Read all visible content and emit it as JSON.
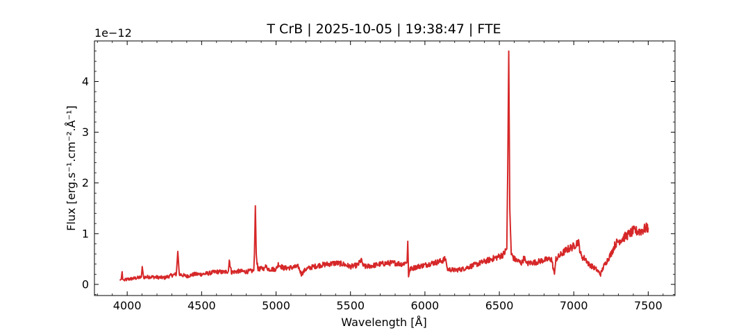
{
  "chart_data": {
    "type": "line",
    "title": "T CrB | 2025-10-05 | 19:38:47 | FTE",
    "xlabel": "Wavelength [Å]",
    "ylabel": "Flux [erg.s⁻¹.cm⁻².Å⁻¹]",
    "offset_text": "1e−12",
    "xlim": [
      3780,
      7680
    ],
    "ylim": [
      -0.22,
      4.8
    ],
    "x_ticks": [
      4000,
      4500,
      5000,
      5500,
      6000,
      6500,
      7000,
      7500
    ],
    "x_tick_labels": [
      "4000",
      "4500",
      "5000",
      "5500",
      "6000",
      "6500",
      "7000",
      "7500"
    ],
    "y_ticks": [
      0,
      1,
      2,
      3,
      4
    ],
    "y_tick_labels": [
      "0",
      "1",
      "2",
      "3",
      "4"
    ],
    "grid": false,
    "line_color": "#d62728",
    "series": [
      {
        "x": [
          3950,
          3960,
          3966,
          3970,
          3980,
          4000,
          4050,
          4095,
          4101,
          4110,
          4150,
          4200,
          4250,
          4300,
          4330,
          4340,
          4350,
          4400,
          4450,
          4500,
          4550,
          4600,
          4650,
          4680,
          4686,
          4700,
          4750,
          4800,
          4850,
          4855,
          4861,
          4867,
          4880,
          4920,
          4930,
          4950,
          5000,
          5015,
          5050,
          5100,
          5150,
          5170,
          5200,
          5250,
          5300,
          5350,
          5400,
          5450,
          5500,
          5550,
          5575,
          5580,
          5600,
          5650,
          5700,
          5750,
          5800,
          5850,
          5880,
          5885,
          5890,
          5900,
          5950,
          6000,
          6050,
          6100,
          6140,
          6150,
          6200,
          6250,
          6300,
          6350,
          6400,
          6450,
          6500,
          6530,
          6550,
          6556,
          6563,
          6570,
          6580,
          6600,
          6650,
          6670,
          6680,
          6700,
          6750,
          6800,
          6850,
          6870,
          6880,
          6900,
          6950,
          7000,
          7030,
          7050,
          7080,
          7100,
          7150,
          7180,
          7200,
          7250,
          7280,
          7300,
          7350,
          7400,
          7450,
          7480,
          7500
        ],
        "y": [
          0.08,
          0.1,
          0.25,
          0.1,
          0.08,
          0.1,
          0.12,
          0.14,
          0.35,
          0.14,
          0.15,
          0.14,
          0.13,
          0.18,
          0.2,
          0.65,
          0.2,
          0.16,
          0.2,
          0.2,
          0.22,
          0.25,
          0.24,
          0.26,
          0.48,
          0.24,
          0.26,
          0.25,
          0.27,
          0.6,
          1.55,
          0.55,
          0.3,
          0.32,
          0.35,
          0.3,
          0.3,
          0.4,
          0.32,
          0.33,
          0.35,
          0.2,
          0.3,
          0.35,
          0.38,
          0.4,
          0.42,
          0.4,
          0.35,
          0.38,
          0.5,
          0.38,
          0.35,
          0.37,
          0.4,
          0.42,
          0.42,
          0.4,
          0.45,
          0.85,
          0.15,
          0.3,
          0.35,
          0.38,
          0.42,
          0.45,
          0.5,
          0.3,
          0.28,
          0.3,
          0.35,
          0.4,
          0.45,
          0.5,
          0.55,
          0.6,
          0.7,
          2.2,
          4.6,
          1.5,
          0.6,
          0.5,
          0.42,
          0.55,
          0.4,
          0.42,
          0.44,
          0.48,
          0.5,
          0.2,
          0.5,
          0.55,
          0.68,
          0.75,
          0.85,
          0.55,
          0.5,
          0.4,
          0.3,
          0.2,
          0.35,
          0.6,
          0.8,
          0.85,
          0.95,
          1.05,
          1.05,
          1.1,
          1.12
        ]
      }
    ]
  }
}
